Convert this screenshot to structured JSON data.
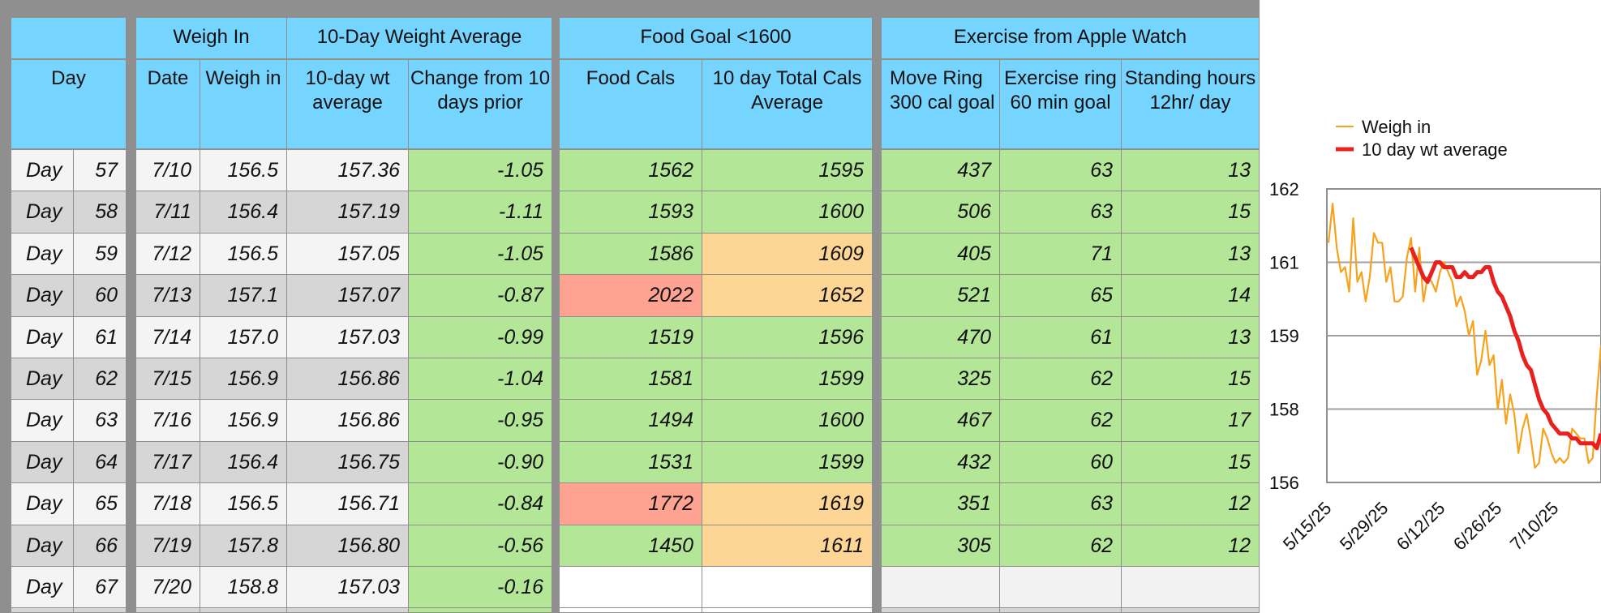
{
  "table": {
    "group_headers": {
      "weigh_in": "Weigh In",
      "ten_day_avg": "10-Day Weight Average",
      "food_goal": "Food Goal <1600",
      "exercise": "Exercise from Apple Watch"
    },
    "col_headers": {
      "day": "Day",
      "date": "Date",
      "weigh_in": "Weigh in",
      "avg": "10-day wt average",
      "change": "Change from 10 days prior",
      "food": "Food Cals",
      "total": "10 day Total Cals Average",
      "move": "Move Ring 300 cal goal",
      "exercise": "Exercise ring 60 min goal",
      "stand": "Standing hours 12hr/ day"
    },
    "rows": [
      {
        "day": "Day",
        "n": "57",
        "date": "7/10",
        "weigh": "156.5",
        "avg": "157.36",
        "change": "-1.05",
        "food": "1562",
        "total": "1595",
        "move": "437",
        "ex": "63",
        "stand": "13",
        "food_status": "green",
        "total_status": "green"
      },
      {
        "day": "Day",
        "n": "58",
        "date": "7/11",
        "weigh": "156.4",
        "avg": "157.19",
        "change": "-1.11",
        "food": "1593",
        "total": "1600",
        "move": "506",
        "ex": "63",
        "stand": "15",
        "food_status": "green",
        "total_status": "green"
      },
      {
        "day": "Day",
        "n": "59",
        "date": "7/12",
        "weigh": "156.5",
        "avg": "157.05",
        "change": "-1.05",
        "food": "1586",
        "total": "1609",
        "move": "405",
        "ex": "71",
        "stand": "13",
        "food_status": "green",
        "total_status": "orange"
      },
      {
        "day": "Day",
        "n": "60",
        "date": "7/13",
        "weigh": "157.1",
        "avg": "157.07",
        "change": "-0.87",
        "food": "2022",
        "total": "1652",
        "move": "521",
        "ex": "65",
        "stand": "14",
        "food_status": "red",
        "total_status": "orange"
      },
      {
        "day": "Day",
        "n": "61",
        "date": "7/14",
        "weigh": "157.0",
        "avg": "157.03",
        "change": "-0.99",
        "food": "1519",
        "total": "1596",
        "move": "470",
        "ex": "61",
        "stand": "13",
        "food_status": "green",
        "total_status": "green"
      },
      {
        "day": "Day",
        "n": "62",
        "date": "7/15",
        "weigh": "156.9",
        "avg": "156.86",
        "change": "-1.04",
        "food": "1581",
        "total": "1599",
        "move": "325",
        "ex": "62",
        "stand": "15",
        "food_status": "green",
        "total_status": "green"
      },
      {
        "day": "Day",
        "n": "63",
        "date": "7/16",
        "weigh": "156.9",
        "avg": "156.86",
        "change": "-0.95",
        "food": "1494",
        "total": "1600",
        "move": "467",
        "ex": "62",
        "stand": "17",
        "food_status": "green",
        "total_status": "green"
      },
      {
        "day": "Day",
        "n": "64",
        "date": "7/17",
        "weigh": "156.4",
        "avg": "156.75",
        "change": "-0.90",
        "food": "1531",
        "total": "1599",
        "move": "432",
        "ex": "60",
        "stand": "15",
        "food_status": "green",
        "total_status": "green"
      },
      {
        "day": "Day",
        "n": "65",
        "date": "7/18",
        "weigh": "156.5",
        "avg": "156.71",
        "change": "-0.84",
        "food": "1772",
        "total": "1619",
        "move": "351",
        "ex": "63",
        "stand": "12",
        "food_status": "red",
        "total_status": "orange"
      },
      {
        "day": "Day",
        "n": "66",
        "date": "7/19",
        "weigh": "157.8",
        "avg": "156.80",
        "change": "-0.56",
        "food": "1450",
        "total": "1611",
        "move": "305",
        "ex": "62",
        "stand": "12",
        "food_status": "green",
        "total_status": "orange"
      },
      {
        "day": "Day",
        "n": "67",
        "date": "7/20",
        "weigh": "158.8",
        "avg": "157.03",
        "change": "-0.16",
        "food": "",
        "total": "",
        "move": "",
        "ex": "",
        "stand": "",
        "food_status": "blank",
        "total_status": "blank"
      }
    ],
    "colors": {
      "header": "#76d5fe",
      "green": "#b4e698",
      "orange": "#fdd595",
      "red": "#fea291",
      "gridline": "#8f8f8f"
    }
  },
  "chart_data": {
    "type": "line",
    "series": [
      {
        "name": "Weigh in",
        "color": "#f7a21b",
        "values": [
          160.9,
          161.7,
          160.8,
          160.3,
          160.4,
          159.9,
          161.4,
          160.1,
          160.3,
          159.7,
          160.2,
          161.1,
          160.9,
          160.9,
          160.1,
          160.4,
          159.7,
          159.7,
          159.8,
          160.6,
          161.0,
          159.9,
          160.8,
          159.7,
          160.2,
          160.1,
          159.9,
          160.3,
          160.5,
          160.3,
          160.1,
          159.6,
          159.8,
          159.5,
          159.0,
          159.3,
          158.2,
          158.5,
          159.1,
          158.4,
          158.6,
          157.5,
          158.1,
          157.2,
          157.8,
          157.4,
          156.6,
          157.1,
          157.4,
          156.9,
          156.3,
          156.4,
          157.1,
          156.9,
          156.6,
          156.4,
          156.5,
          156.4,
          156.5,
          157.1,
          157.0,
          156.9,
          156.9,
          156.4,
          156.5,
          157.8,
          158.8
        ]
      },
      {
        "name": "10 day wt average",
        "color": "#e8211f",
        "values": [
          160.8,
          160.6,
          160.4,
          160.2,
          160.1,
          160.3,
          160.5,
          160.5,
          160.4,
          160.4,
          160.4,
          160.2,
          160.2,
          160.3,
          160.2,
          160.2,
          160.3,
          160.3,
          160.4,
          160.4,
          160.1,
          159.9,
          159.8,
          159.6,
          159.4,
          159.1,
          158.9,
          158.6,
          158.4,
          158.3,
          158.0,
          157.7,
          157.5,
          157.4,
          157.2,
          157.1,
          157.0,
          157.0,
          157.0,
          156.9,
          156.9,
          156.8,
          156.8,
          156.8,
          156.8,
          156.7,
          157.0
        ]
      }
    ],
    "x_tick_labels": [
      "5/15/25",
      "5/29/25",
      "6/12/25",
      "6/26/25",
      "7/10/25"
    ],
    "y_tick_labels": [
      "162",
      "161",
      "159",
      "158",
      "156"
    ],
    "legend_position": "top",
    "grid": true
  }
}
